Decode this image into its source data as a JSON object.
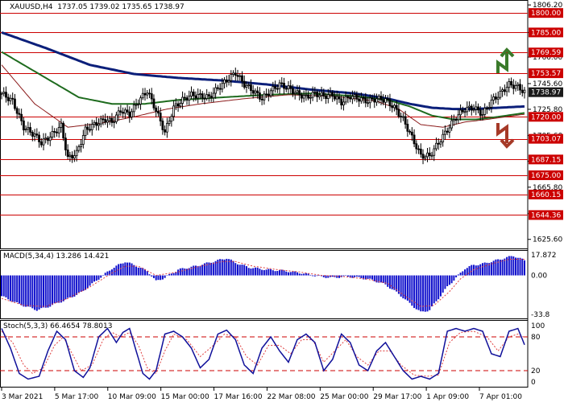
{
  "header": {
    "symbol": "XAUUSD,H4",
    "ohlc": "1737.05 1739.02 1735.65 1738.97"
  },
  "indicators": {
    "macd_label": "MACD(5,34,4) 13.286 14.421",
    "stoch_label": "Stoch(5,3,3) 66.4654 78.8013"
  },
  "colors": {
    "bull": "#3a6e2c",
    "bear": "#9e3426",
    "level": "#cc0000",
    "ma_slow": "#0b1f7a",
    "ma_mid": "#1e6b1e",
    "ma_fast": "#8b1a1a",
    "histogram": "#1010cc",
    "current_price_bg": "#1a1a1a"
  },
  "icons": {
    "up": "up-arrow-icon",
    "down": "down-arrow-icon"
  },
  "chart_data": {
    "type": "candlestick",
    "price_axis": {
      "ylim": [
        1618,
        1810
      ],
      "ticks": [
        1806.2,
        1785.0,
        1766.0,
        1745.6,
        1725.8,
        1705.6,
        1685.8,
        1665.8,
        1645.4,
        1625.6
      ]
    },
    "levels": [
      1800.0,
      1785.0,
      1769.59,
      1753.57,
      1720.0,
      1703.07,
      1687.15,
      1675.0,
      1660.15,
      1644.36
    ],
    "current_price": 1738.97,
    "time_labels": [
      "3 Mar 2021",
      "5 Mar 17:00",
      "10 Mar 09:00",
      "15 Mar 00:00",
      "17 Mar 16:00",
      "22 Mar 08:00",
      "25 Mar 00:00",
      "29 Mar 17:00",
      "1 Apr 09:00",
      "7 Apr 01:00"
    ],
    "close_path": [
      [
        0,
        1738
      ],
      [
        5,
        1732
      ],
      [
        10,
        1712
      ],
      [
        15,
        1706
      ],
      [
        18,
        1700
      ],
      [
        22,
        1705
      ],
      [
        27,
        1713
      ],
      [
        30,
        1688
      ],
      [
        34,
        1692
      ],
      [
        38,
        1710
      ],
      [
        43,
        1715
      ],
      [
        47,
        1718
      ],
      [
        50,
        1716
      ],
      [
        54,
        1725
      ],
      [
        58,
        1722
      ],
      [
        62,
        1732
      ],
      [
        66,
        1740
      ],
      [
        70,
        1725
      ],
      [
        74,
        1708
      ],
      [
        78,
        1727
      ],
      [
        82,
        1733
      ],
      [
        86,
        1737
      ],
      [
        90,
        1736
      ],
      [
        94,
        1735
      ],
      [
        98,
        1742
      ],
      [
        102,
        1748
      ],
      [
        106,
        1754
      ],
      [
        110,
        1745
      ],
      [
        114,
        1740
      ],
      [
        118,
        1734
      ],
      [
        122,
        1740
      ],
      [
        126,
        1745
      ],
      [
        130,
        1742
      ],
      [
        134,
        1738
      ],
      [
        138,
        1735
      ],
      [
        142,
        1738
      ],
      [
        146,
        1736
      ],
      [
        150,
        1737
      ],
      [
        154,
        1731
      ],
      [
        158,
        1736
      ],
      [
        162,
        1734
      ],
      [
        166,
        1732
      ],
      [
        170,
        1734
      ],
      [
        174,
        1733
      ],
      [
        178,
        1727
      ],
      [
        182,
        1718
      ],
      [
        186,
        1704
      ],
      [
        190,
        1690
      ],
      [
        194,
        1690
      ],
      [
        198,
        1700
      ],
      [
        202,
        1710
      ],
      [
        206,
        1720
      ],
      [
        210,
        1726
      ],
      [
        214,
        1727
      ],
      [
        218,
        1722
      ],
      [
        222,
        1732
      ],
      [
        226,
        1738
      ],
      [
        230,
        1745
      ],
      [
        234,
        1743
      ],
      [
        237,
        1739
      ]
    ],
    "moving_averages": [
      {
        "name": "slow",
        "points": [
          [
            0,
            1785
          ],
          [
            20,
            1773
          ],
          [
            40,
            1760
          ],
          [
            60,
            1753
          ],
          [
            80,
            1750
          ],
          [
            100,
            1748
          ],
          [
            120,
            1745
          ],
          [
            140,
            1741
          ],
          [
            160,
            1738
          ],
          [
            175,
            1734
          ],
          [
            185,
            1730
          ],
          [
            195,
            1727
          ],
          [
            205,
            1726
          ],
          [
            215,
            1726
          ],
          [
            225,
            1727
          ],
          [
            237,
            1728
          ]
        ]
      },
      {
        "name": "mid",
        "points": [
          [
            0,
            1770
          ],
          [
            20,
            1750
          ],
          [
            35,
            1735
          ],
          [
            50,
            1730
          ],
          [
            65,
            1730
          ],
          [
            80,
            1733
          ],
          [
            100,
            1735
          ],
          [
            120,
            1737
          ],
          [
            140,
            1738
          ],
          [
            160,
            1736
          ],
          [
            175,
            1733
          ],
          [
            185,
            1728
          ],
          [
            195,
            1721
          ],
          [
            205,
            1718
          ],
          [
            215,
            1718
          ],
          [
            225,
            1720
          ],
          [
            237,
            1723
          ]
        ]
      },
      {
        "name": "fast",
        "points": [
          [
            0,
            1760
          ],
          [
            15,
            1730
          ],
          [
            30,
            1712
          ],
          [
            45,
            1715
          ],
          [
            60,
            1720
          ],
          [
            75,
            1726
          ],
          [
            90,
            1730
          ],
          [
            110,
            1734
          ],
          [
            130,
            1737
          ],
          [
            150,
            1736
          ],
          [
            170,
            1732
          ],
          [
            180,
            1726
          ],
          [
            190,
            1714
          ],
          [
            200,
            1712
          ],
          [
            210,
            1716
          ],
          [
            220,
            1718
          ],
          [
            237,
            1722
          ]
        ]
      }
    ],
    "macd": {
      "ylim": [
        -38,
        22
      ],
      "ticks": [
        17.872,
        0.0,
        -33.8
      ],
      "histogram_path": [
        [
          0,
          -18
        ],
        [
          8,
          -25
        ],
        [
          16,
          -30
        ],
        [
          20,
          -28
        ],
        [
          28,
          -22
        ],
        [
          36,
          -15
        ],
        [
          44,
          -3
        ],
        [
          50,
          6
        ],
        [
          56,
          12
        ],
        [
          60,
          9
        ],
        [
          66,
          4
        ],
        [
          70,
          -5
        ],
        [
          74,
          -2
        ],
        [
          80,
          5
        ],
        [
          88,
          8
        ],
        [
          96,
          12
        ],
        [
          102,
          15
        ],
        [
          106,
          11
        ],
        [
          112,
          7
        ],
        [
          120,
          5
        ],
        [
          128,
          4
        ],
        [
          136,
          2
        ],
        [
          144,
          -1
        ],
        [
          150,
          -2
        ],
        [
          156,
          -1
        ],
        [
          162,
          -2
        ],
        [
          168,
          -4
        ],
        [
          174,
          -8
        ],
        [
          180,
          -16
        ],
        [
          186,
          -26
        ],
        [
          190,
          -32
        ],
        [
          194,
          -30
        ],
        [
          198,
          -20
        ],
        [
          202,
          -10
        ],
        [
          206,
          -2
        ],
        [
          210,
          6
        ],
        [
          214,
          9
        ],
        [
          218,
          10
        ],
        [
          222,
          12
        ],
        [
          228,
          15
        ],
        [
          232,
          17
        ],
        [
          237,
          13
        ]
      ],
      "signal_path": [
        [
          0,
          -20
        ],
        [
          10,
          -26
        ],
        [
          20,
          -27
        ],
        [
          30,
          -20
        ],
        [
          40,
          -10
        ],
        [
          50,
          2
        ],
        [
          56,
          8
        ],
        [
          62,
          8
        ],
        [
          70,
          0
        ],
        [
          80,
          3
        ],
        [
          90,
          8
        ],
        [
          100,
          12
        ],
        [
          106,
          12
        ],
        [
          114,
          8
        ],
        [
          125,
          5
        ],
        [
          135,
          3
        ],
        [
          145,
          0
        ],
        [
          155,
          -1
        ],
        [
          165,
          -3
        ],
        [
          175,
          -7
        ],
        [
          183,
          -18
        ],
        [
          190,
          -27
        ],
        [
          196,
          -26
        ],
        [
          203,
          -14
        ],
        [
          208,
          -3
        ],
        [
          214,
          5
        ],
        [
          222,
          10
        ],
        [
          230,
          14
        ],
        [
          237,
          14
        ]
      ]
    },
    "stochastic": {
      "ylim": [
        0,
        100
      ],
      "ticks": [
        100,
        80,
        20,
        0
      ],
      "levels": [
        80,
        20
      ],
      "k_path": [
        [
          0,
          95
        ],
        [
          4,
          60
        ],
        [
          8,
          15
        ],
        [
          12,
          5
        ],
        [
          17,
          10
        ],
        [
          21,
          55
        ],
        [
          25,
          90
        ],
        [
          29,
          75
        ],
        [
          33,
          20
        ],
        [
          37,
          8
        ],
        [
          40,
          25
        ],
        [
          44,
          80
        ],
        [
          48,
          95
        ],
        [
          52,
          70
        ],
        [
          55,
          88
        ],
        [
          58,
          95
        ],
        [
          61,
          55
        ],
        [
          64,
          15
        ],
        [
          67,
          5
        ],
        [
          70,
          20
        ],
        [
          74,
          85
        ],
        [
          78,
          90
        ],
        [
          82,
          80
        ],
        [
          86,
          60
        ],
        [
          90,
          25
        ],
        [
          94,
          40
        ],
        [
          98,
          85
        ],
        [
          102,
          92
        ],
        [
          106,
          75
        ],
        [
          110,
          30
        ],
        [
          114,
          15
        ],
        [
          118,
          60
        ],
        [
          122,
          80
        ],
        [
          126,
          55
        ],
        [
          130,
          35
        ],
        [
          134,
          75
        ],
        [
          138,
          85
        ],
        [
          142,
          70
        ],
        [
          146,
          20
        ],
        [
          150,
          40
        ],
        [
          154,
          85
        ],
        [
          158,
          70
        ],
        [
          162,
          30
        ],
        [
          166,
          20
        ],
        [
          170,
          55
        ],
        [
          174,
          70
        ],
        [
          178,
          45
        ],
        [
          182,
          20
        ],
        [
          186,
          5
        ],
        [
          190,
          10
        ],
        [
          194,
          5
        ],
        [
          198,
          15
        ],
        [
          202,
          90
        ],
        [
          206,
          95
        ],
        [
          210,
          90
        ],
        [
          214,
          95
        ],
        [
          218,
          90
        ],
        [
          222,
          50
        ],
        [
          226,
          45
        ],
        [
          230,
          90
        ],
        [
          234,
          95
        ],
        [
          237,
          66
        ]
      ],
      "d_path": [
        [
          0,
          90
        ],
        [
          5,
          70
        ],
        [
          10,
          30
        ],
        [
          14,
          15
        ],
        [
          19,
          25
        ],
        [
          24,
          65
        ],
        [
          28,
          80
        ],
        [
          32,
          50
        ],
        [
          36,
          20
        ],
        [
          41,
          30
        ],
        [
          46,
          75
        ],
        [
          50,
          88
        ],
        [
          54,
          80
        ],
        [
          58,
          88
        ],
        [
          62,
          65
        ],
        [
          66,
          25
        ],
        [
          70,
          15
        ],
        [
          74,
          55
        ],
        [
          78,
          85
        ],
        [
          84,
          75
        ],
        [
          90,
          45
        ],
        [
          96,
          65
        ],
        [
          101,
          85
        ],
        [
          106,
          80
        ],
        [
          111,
          45
        ],
        [
          116,
          30
        ],
        [
          121,
          65
        ],
        [
          126,
          65
        ],
        [
          131,
          50
        ],
        [
          136,
          75
        ],
        [
          141,
          75
        ],
        [
          146,
          35
        ],
        [
          151,
          55
        ],
        [
          156,
          75
        ],
        [
          161,
          45
        ],
        [
          166,
          30
        ],
        [
          171,
          55
        ],
        [
          176,
          55
        ],
        [
          181,
          30
        ],
        [
          187,
          12
        ],
        [
          193,
          10
        ],
        [
          198,
          12
        ],
        [
          203,
          70
        ],
        [
          208,
          88
        ],
        [
          214,
          90
        ],
        [
          220,
          80
        ],
        [
          225,
          55
        ],
        [
          230,
          80
        ],
        [
          234,
          85
        ],
        [
          237,
          79
        ]
      ]
    }
  }
}
